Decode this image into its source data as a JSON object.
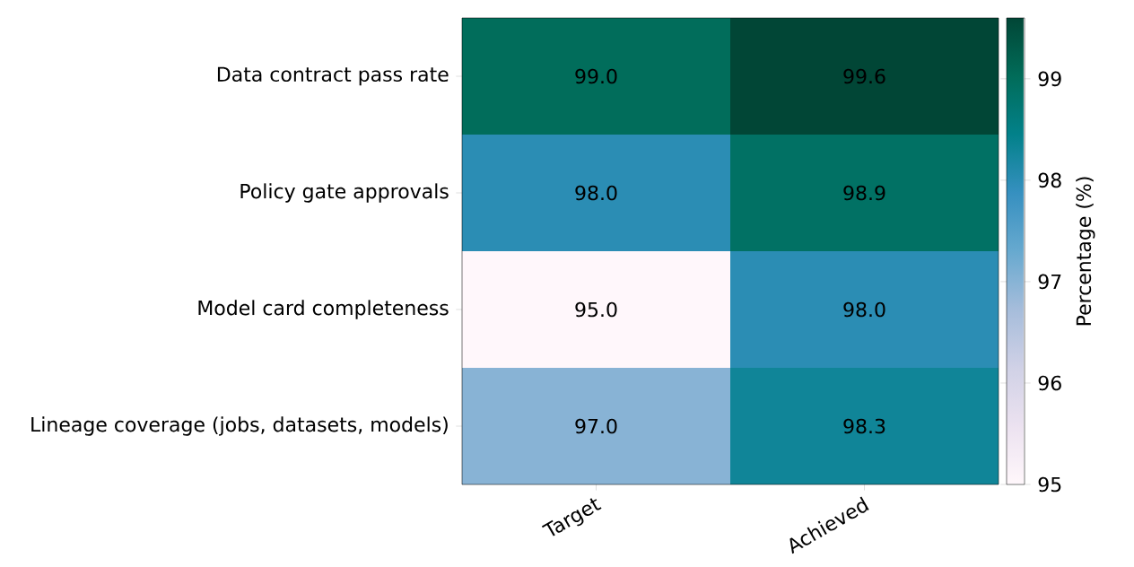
{
  "chart_data": {
    "type": "heatmap",
    "categories": [
      "Target",
      "Achieved"
    ],
    "y_categories": [
      "Data contract pass rate",
      "Policy gate approvals",
      "Model card completeness",
      "Lineage coverage (jobs, datasets, models)"
    ],
    "cells": [
      [
        99.0,
        99.6
      ],
      [
        98.0,
        98.9
      ],
      [
        95.0,
        98.0
      ],
      [
        97.0,
        98.3
      ]
    ],
    "cell_labels": [
      [
        "99.0",
        "99.6"
      ],
      [
        "98.0",
        "98.9"
      ],
      [
        "95.0",
        "98.0"
      ],
      [
        "97.0",
        "98.3"
      ]
    ],
    "clabel": "Percentage (%)",
    "clim": [
      95,
      99.6
    ],
    "cticks": [
      95,
      96,
      97,
      98,
      99
    ]
  }
}
